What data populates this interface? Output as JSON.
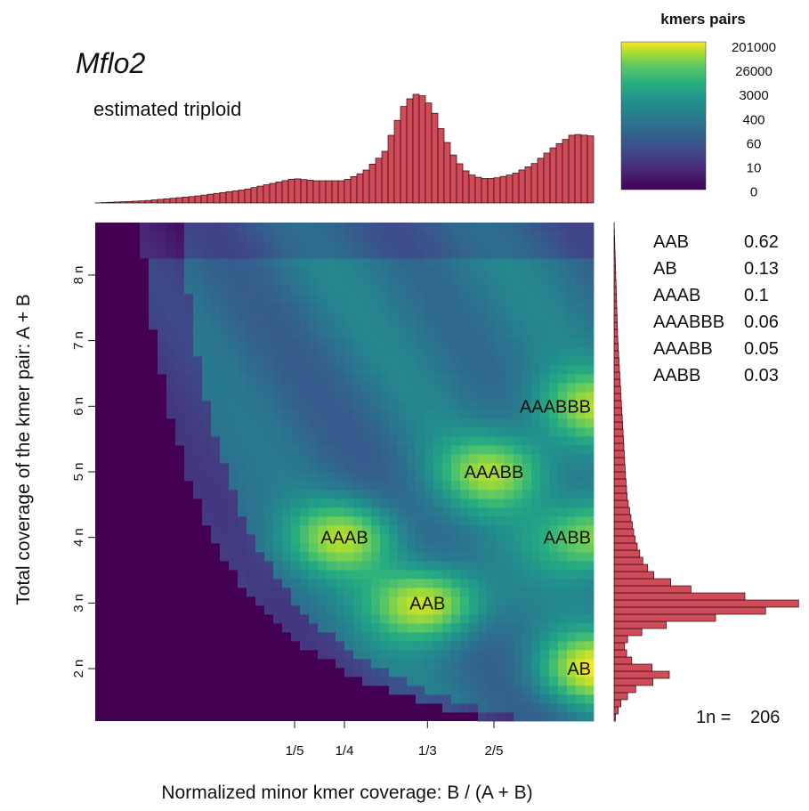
{
  "title": "Mflo2",
  "subtitle": "estimated triploid",
  "chart_data": {
    "type": "heatmap",
    "xlabel": "Normalized minor kmer coverage: B / (A + B)",
    "ylabel": "Total coverage of the kmer pair: A + B",
    "xlim": [
      0.0,
      0.5
    ],
    "ylim": [
      1.2,
      8.8
    ],
    "x_ticks": [
      {
        "value": 0.2,
        "label": "1/5"
      },
      {
        "value": 0.25,
        "label": "1/4"
      },
      {
        "value": 0.3333,
        "label": "1/3"
      },
      {
        "value": 0.4,
        "label": "2/5"
      }
    ],
    "y_ticks": [
      {
        "value": 2,
        "label": "2 n"
      },
      {
        "value": 3,
        "label": "3 n"
      },
      {
        "value": 4,
        "label": "4 n"
      },
      {
        "value": 5,
        "label": "5 n"
      },
      {
        "value": 6,
        "label": "6 n"
      },
      {
        "value": 7,
        "label": "7 n"
      },
      {
        "value": 8,
        "label": "8 n"
      }
    ],
    "peaks": [
      {
        "label": "AAB",
        "x": 0.3333,
        "y": 3,
        "intensity": 1.0
      },
      {
        "label": "AB",
        "x": 0.5,
        "y": 2,
        "intensity": 0.95
      },
      {
        "label": "AAAB",
        "x": 0.25,
        "y": 4,
        "intensity": 0.82
      },
      {
        "label": "AABB",
        "x": 0.5,
        "y": 4,
        "intensity": 0.78
      },
      {
        "label": "AAABB",
        "x": 0.4,
        "y": 5,
        "intensity": 0.75
      },
      {
        "label": "AAABBB",
        "x": 0.5,
        "y": 6,
        "intensity": 0.72
      }
    ],
    "colorbar": {
      "title": "kmers pairs",
      "labels": [
        "201000",
        "26000",
        "3000",
        "400",
        "60",
        "10",
        "0"
      ]
    },
    "top_histogram": {
      "x": [
        0.0,
        0.05,
        0.1,
        0.15,
        0.18,
        0.2,
        0.22,
        0.25,
        0.27,
        0.29,
        0.3,
        0.31,
        0.32,
        0.33,
        0.34,
        0.35,
        0.36,
        0.37,
        0.38,
        0.39,
        0.4,
        0.42,
        0.44,
        0.46,
        0.48,
        0.5
      ],
      "y": [
        0.0,
        0.02,
        0.06,
        0.12,
        0.18,
        0.22,
        0.2,
        0.2,
        0.28,
        0.45,
        0.68,
        0.88,
        0.98,
        0.96,
        0.82,
        0.6,
        0.42,
        0.3,
        0.24,
        0.22,
        0.22,
        0.26,
        0.35,
        0.5,
        0.62,
        0.6
      ]
    },
    "right_histogram": {
      "y": [
        1.2,
        1.5,
        1.7,
        1.9,
        2.0,
        2.1,
        2.3,
        2.5,
        2.7,
        2.8,
        2.9,
        3.0,
        3.1,
        3.2,
        3.4,
        3.6,
        3.8,
        4.0,
        4.3,
        4.6,
        5.0,
        5.5,
        6.0,
        7.0,
        8.8
      ],
      "x": [
        0.0,
        0.04,
        0.12,
        0.3,
        0.22,
        0.1,
        0.05,
        0.08,
        0.32,
        0.62,
        0.85,
        1.0,
        0.7,
        0.42,
        0.22,
        0.16,
        0.13,
        0.11,
        0.09,
        0.07,
        0.06,
        0.05,
        0.04,
        0.02,
        0.0
      ]
    },
    "legend": [
      {
        "label": "AAB",
        "value": "0.62"
      },
      {
        "label": "AB",
        "value": "0.13"
      },
      {
        "label": "AAAB",
        "value": "0.1"
      },
      {
        "label": "AAABBB",
        "value": "0.06"
      },
      {
        "label": "AAABB",
        "value": "0.05"
      },
      {
        "label": "AABB",
        "value": "0.03"
      }
    ],
    "coverage_label": "1n =",
    "coverage_value": "206"
  },
  "colors": {
    "hist_fill": "#d04a57",
    "hist_stroke": "#2a0a10",
    "background_bin": "#440154"
  }
}
